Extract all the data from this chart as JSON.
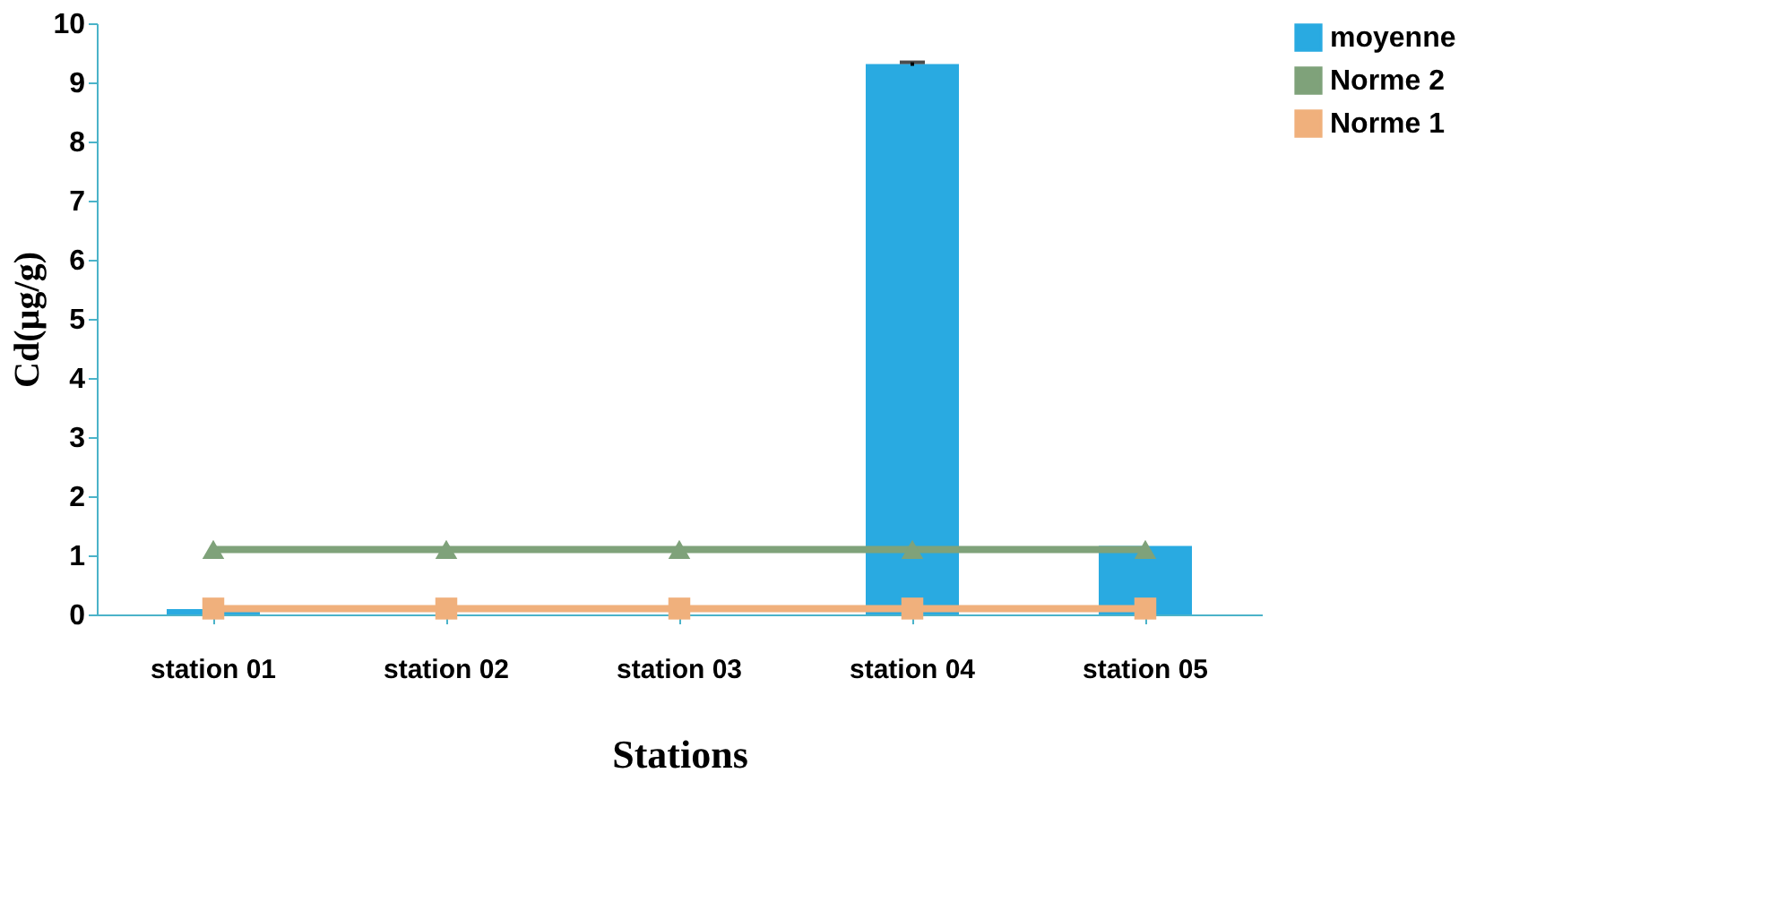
{
  "chart_data": {
    "type": "bar",
    "xlabel": "Stations",
    "ylabel": "Cd(µg/g)",
    "categories": [
      "station 01",
      "station 02",
      "station 03",
      "station 04",
      "station 05"
    ],
    "series": [
      {
        "name": "moyenne",
        "color": "#29aae1",
        "values": [
          0.09,
          0,
          0,
          9.31,
          1.16
        ],
        "errors": [
          null,
          null,
          null,
          0.03,
          null
        ]
      },
      {
        "name": "Norme 2",
        "type": "line",
        "marker": "triangle",
        "color": "#7fa27a",
        "values": [
          1.1,
          1.1,
          1.1,
          1.1,
          1.1
        ]
      },
      {
        "name": "Norme 1",
        "type": "line",
        "marker": "square",
        "color": "#f0b07c",
        "values": [
          0.1,
          0.1,
          0.1,
          0.1,
          0.1
        ]
      }
    ],
    "ylim": [
      0,
      10
    ],
    "yticks": [
      0,
      1,
      2,
      3,
      4,
      5,
      6,
      7,
      8,
      9,
      10
    ],
    "grid": false,
    "legend": "right"
  }
}
